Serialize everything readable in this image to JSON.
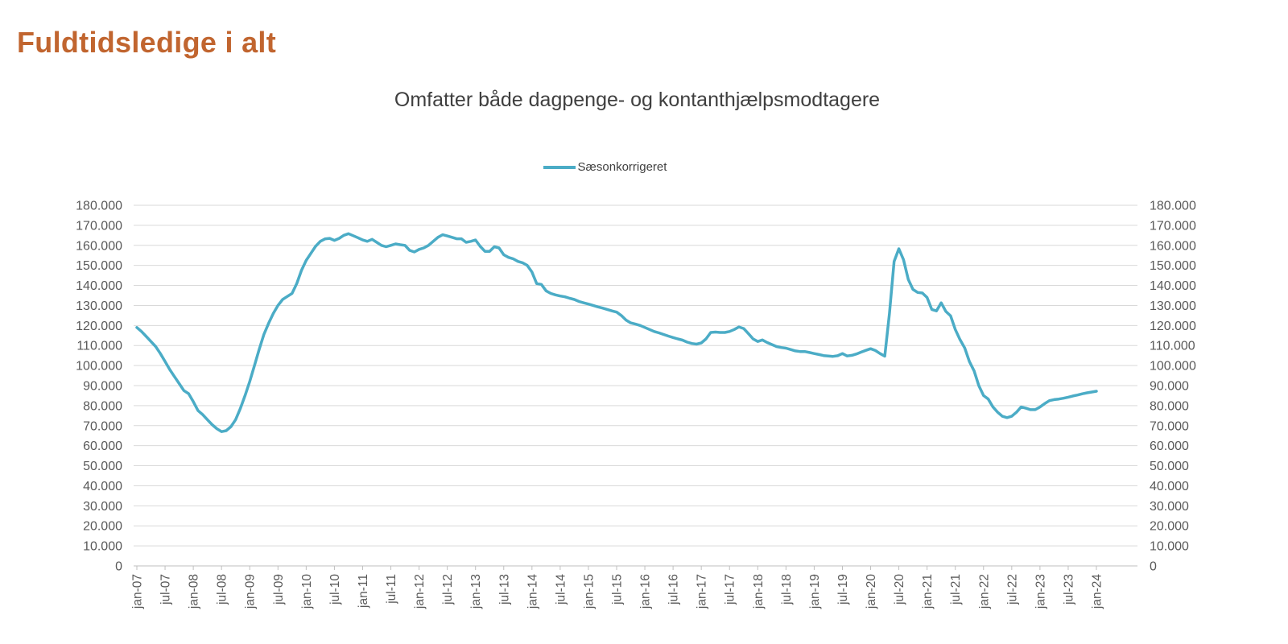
{
  "header": {
    "title": "Fuldtidsledige i alt",
    "title_color": "#C1652F"
  },
  "chart": {
    "subtitle": "Omfatter både dagpenge- og kontanthjælpsmodtagere",
    "legend": [
      {
        "label": "Sæsonkorrigeret",
        "color": "#4BACC6"
      }
    ]
  },
  "chart_data": {
    "type": "line",
    "title": "Omfatter både dagpenge- og kontanthjælpsmodtagere",
    "series_name": "Sæsonkorrigeret",
    "line_color": "#4BACC6",
    "gridline_color": "#D9D9D9",
    "axis_line_color": "#BFBFBF",
    "axis_label_color": "#595959",
    "grid": true,
    "legend_position": "top-center",
    "ylim": [
      0,
      180000
    ],
    "y_tick_step": 10000,
    "y_axis_sides": [
      "left",
      "right"
    ],
    "y_tick_labels": [
      "0",
      "10.000",
      "20.000",
      "30.000",
      "40.000",
      "50.000",
      "60.000",
      "70.000",
      "80.000",
      "90.000",
      "100.000",
      "110.000",
      "120.000",
      "130.000",
      "140.000",
      "150.000",
      "160.000",
      "170.000",
      "180.000"
    ],
    "x_tick_labels": [
      "jan-07",
      "jul-07",
      "jan-08",
      "jul-08",
      "jan-09",
      "jul-09",
      "jan-10",
      "jul-10",
      "jan-11",
      "jul-11",
      "jan-12",
      "jul-12",
      "jan-13",
      "jul-13",
      "jan-14",
      "jul-14",
      "jan-15",
      "jul-15",
      "jan-16",
      "jul-16",
      "jan-17",
      "jul-17",
      "jan-18",
      "jul-18",
      "jan-19",
      "jul-19",
      "jan-20",
      "jul-20",
      "jan-21",
      "jul-21",
      "jan-22",
      "jul-22",
      "jan-23",
      "jul-23",
      "jan-24"
    ],
    "x_months_per_tick": 6,
    "unit_multiplier": 1000,
    "values_unit": "persons (thousands)",
    "values_thousands": [
      119.0,
      117.0,
      114.5,
      112.0,
      109.5,
      106.0,
      102.0,
      98.0,
      94.5,
      91.0,
      87.5,
      86.0,
      82.0,
      77.5,
      75.5,
      73.0,
      70.5,
      68.5,
      67.0,
      67.5,
      69.5,
      73.0,
      78.5,
      85.0,
      92.0,
      100.0,
      108.0,
      115.5,
      121.0,
      126.0,
      130.0,
      133.0,
      134.5,
      136.0,
      141.0,
      147.5,
      152.5,
      156.0,
      159.5,
      162.0,
      163.2,
      163.5,
      162.5,
      163.5,
      165.0,
      165.8,
      164.8,
      163.8,
      162.7,
      162.0,
      163.0,
      161.5,
      160.0,
      159.3,
      160.0,
      160.7,
      160.3,
      160.0,
      157.5,
      156.7,
      158.0,
      158.7,
      160.0,
      162.0,
      164.0,
      165.3,
      164.7,
      164.0,
      163.3,
      163.3,
      161.5,
      162.0,
      162.7,
      159.5,
      157.0,
      157.0,
      159.3,
      158.7,
      155.3,
      154.0,
      153.3,
      152.0,
      151.3,
      150.0,
      146.7,
      140.9,
      140.5,
      137.3,
      136.0,
      135.3,
      134.7,
      134.3,
      133.6,
      133.0,
      132.0,
      131.3,
      130.7,
      130.0,
      129.3,
      128.7,
      128.0,
      127.3,
      126.7,
      125.0,
      122.7,
      121.3,
      120.7,
      120.0,
      119.0,
      118.0,
      117.0,
      116.3,
      115.5,
      114.7,
      114.0,
      113.3,
      112.7,
      111.7,
      111.0,
      110.7,
      111.3,
      113.3,
      116.5,
      116.7,
      116.5,
      116.5,
      117.0,
      118.0,
      119.3,
      118.5,
      116.0,
      113.3,
      112.0,
      112.8,
      111.5,
      110.5,
      109.5,
      109.0,
      108.7,
      108.0,
      107.3,
      107.0,
      107.0,
      106.5,
      106.0,
      105.5,
      105.0,
      104.8,
      104.6,
      104.9,
      106.0,
      104.8,
      105.1,
      105.8,
      106.7,
      107.6,
      108.4,
      107.5,
      106.0,
      104.7,
      126.0,
      152.0,
      158.3,
      152.8,
      143.0,
      138.0,
      136.5,
      136.2,
      134.0,
      128.0,
      127.3,
      131.3,
      127.0,
      124.8,
      118.0,
      113.0,
      108.8,
      102.0,
      97.3,
      90.0,
      85.0,
      83.3,
      79.3,
      76.7,
      74.7,
      74.0,
      74.7,
      76.7,
      79.3,
      78.7,
      78.0,
      78.0,
      79.3,
      81.0,
      82.5,
      83.0,
      83.3,
      83.7,
      84.2,
      84.8,
      85.3,
      85.9,
      86.4,
      86.8,
      87.2
    ]
  }
}
